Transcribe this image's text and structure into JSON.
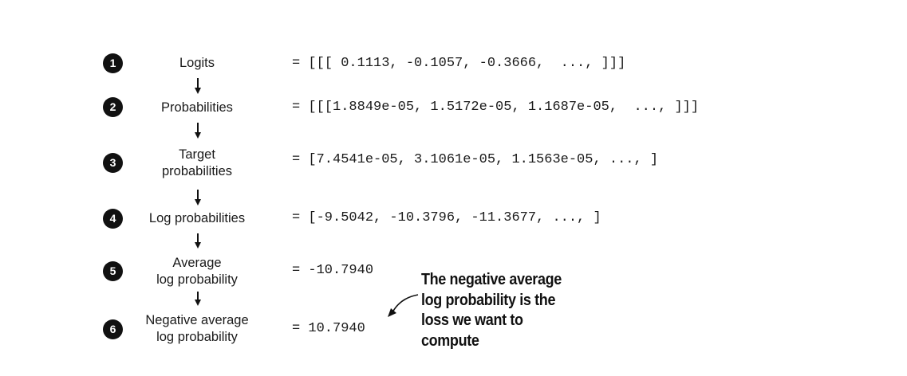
{
  "steps": [
    {
      "number": "1",
      "label": [
        "Logits"
      ],
      "value": "= [[[ 0.1113, -0.1057, -0.3666,  ..., ]]]"
    },
    {
      "number": "2",
      "label": [
        "Probabilities"
      ],
      "value": "= [[[1.8849e-05, 1.5172e-05, 1.1687e-05,  ..., ]]]"
    },
    {
      "number": "3",
      "label": [
        "Target",
        "probabilities"
      ],
      "value": "= [7.4541e-05, 3.1061e-05, 1.1563e-05, ..., ]"
    },
    {
      "number": "4",
      "label": [
        "Log probabilities"
      ],
      "value": "= [-9.5042, -10.3796, -11.3677, ..., ]"
    },
    {
      "number": "5",
      "label": [
        "Average",
        "log probability"
      ],
      "value": "= -10.7940"
    },
    {
      "number": "6",
      "label": [
        "Negative average",
        "log probability"
      ],
      "value": "= 10.7940"
    }
  ],
  "callout": {
    "lines": [
      "The negative average",
      "log probability is the",
      "loss we want to",
      "compute"
    ]
  }
}
